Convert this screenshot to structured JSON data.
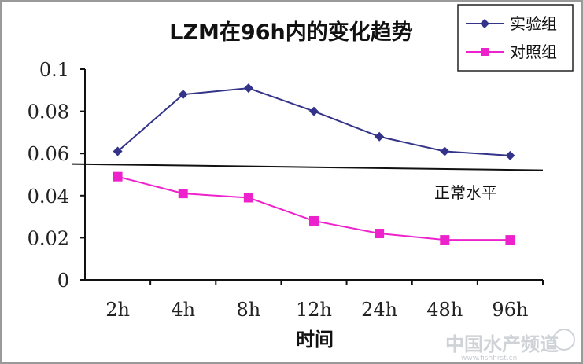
{
  "chart_data": {
    "type": "line",
    "title": "LZM在96h内的变化趋势",
    "xlabel": "时间",
    "ylabel": "",
    "categories": [
      "2h",
      "4h",
      "8h",
      "12h",
      "24h",
      "48h",
      "96h"
    ],
    "ylim": [
      0,
      0.1
    ],
    "yticks": [
      0,
      0.02,
      0.04,
      0.06,
      0.08,
      0.1
    ],
    "ytick_labels": [
      "0",
      "0.02",
      "0.04",
      "0.06",
      "0.08",
      "0.1"
    ],
    "series": [
      {
        "name": "实验组",
        "values": [
          0.061,
          0.088,
          0.091,
          0.08,
          0.068,
          0.061,
          0.059
        ],
        "color": "#33338a",
        "marker": "diamond"
      },
      {
        "name": "对照组",
        "values": [
          0.049,
          0.041,
          0.039,
          0.028,
          0.022,
          0.019,
          0.019
        ],
        "color": "#ee22cc",
        "marker": "square"
      }
    ],
    "reference_line": {
      "label": "正常水平",
      "y_start": 0.055,
      "y_end": 0.052,
      "color": "#111111"
    },
    "grid": false,
    "legend": "top-right"
  },
  "watermark": {
    "text": "中国水产频道",
    "url": "www.fishfirst.cn"
  }
}
